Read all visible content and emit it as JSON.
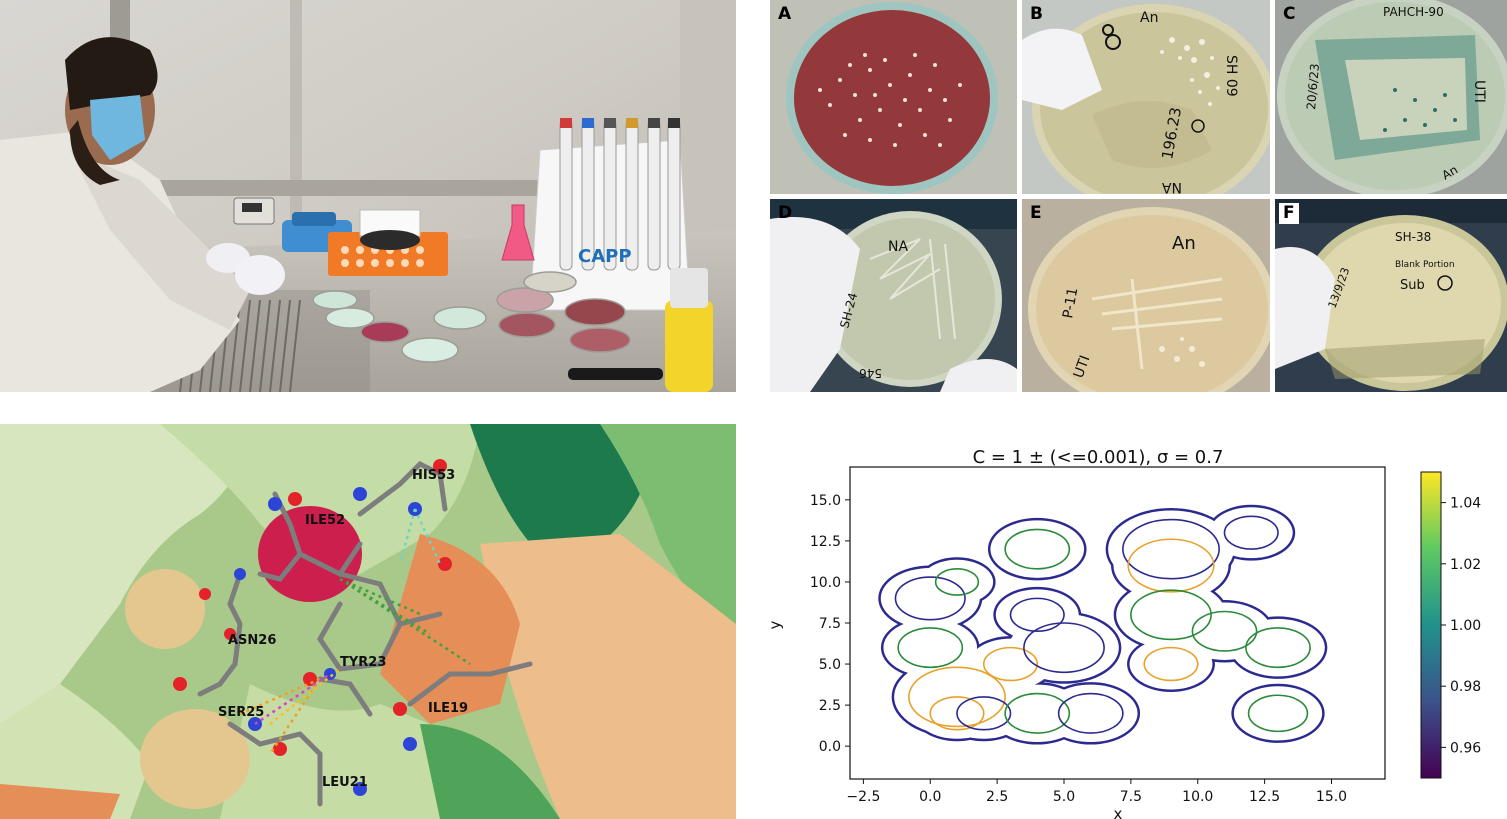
{
  "dishes": [
    {
      "letter": "A"
    },
    {
      "letter": "B"
    },
    {
      "letter": "C"
    },
    {
      "letter": "D"
    },
    {
      "letter": "E"
    },
    {
      "letter": "F"
    }
  ],
  "dish_writing": {
    "b1": "An",
    "b2": "196.23",
    "b3": "NA",
    "b4": "SH 09",
    "c1": "PAHCH-90",
    "c2": "20/6/23",
    "c3": "UTI",
    "c4": "An",
    "d1": "NA",
    "d2": "SH-24",
    "d3": "546",
    "e1": "An",
    "e2": "P-11",
    "e3": "UTI",
    "f1": "SH-38",
    "f2": "Blank Portion",
    "f3": "Sub",
    "f4": "13/9/23"
  },
  "lab_brand": "CAPP",
  "residues": {
    "his53": "HIS53",
    "ile52": "ILE52",
    "asn26": "ASN26",
    "tyr23": "TYR23",
    "ser25": "SER25",
    "ile19": "ILE19",
    "leu21": "LEU21"
  },
  "chart_data": {
    "type": "contour",
    "title": "C = 1 ± (<=0.001),  σ = 0.7",
    "xlabel": "x",
    "ylabel": "y",
    "xlim": [
      -3,
      17
    ],
    "ylim": [
      -2,
      17
    ],
    "x_ticks": [
      "−2.5",
      "0.0",
      "2.5",
      "5.0",
      "7.5",
      "10.0",
      "12.5",
      "15.0"
    ],
    "y_ticks": [
      "0.0",
      "2.5",
      "5.0",
      "7.5",
      "10.0",
      "12.5",
      "15.0"
    ],
    "colorbar_ticks": [
      "0.96",
      "0.98",
      "1.00",
      "1.02",
      "1.04"
    ],
    "colorbar_range": [
      0.95,
      1.05
    ],
    "circles": [
      {
        "x": 0.0,
        "y": 9.0,
        "r": 1.3,
        "color": "#2c2a8f"
      },
      {
        "x": 1.0,
        "y": 10.0,
        "r": 0.8,
        "color": "#2b8a3a"
      },
      {
        "x": 0.0,
        "y": 6.0,
        "r": 1.2,
        "color": "#2b8a3a"
      },
      {
        "x": 1.0,
        "y": 3.0,
        "r": 1.8,
        "color": "#e8a22b"
      },
      {
        "x": 1.0,
        "y": 2.0,
        "r": 1.0,
        "color": "#e8a22b"
      },
      {
        "x": 2.0,
        "y": 2.0,
        "r": 1.0,
        "color": "#2c2a8f"
      },
      {
        "x": 3.0,
        "y": 5.0,
        "r": 1.0,
        "color": "#e8a22b"
      },
      {
        "x": 4.0,
        "y": 8.0,
        "r": 1.0,
        "color": "#2c2a8f"
      },
      {
        "x": 5.0,
        "y": 6.0,
        "r": 1.5,
        "color": "#2c2a8f"
      },
      {
        "x": 4.0,
        "y": 12.0,
        "r": 1.2,
        "color": "#2b8a3a"
      },
      {
        "x": 4.0,
        "y": 2.0,
        "r": 1.2,
        "color": "#2b8a3a"
      },
      {
        "x": 6.0,
        "y": 2.0,
        "r": 1.2,
        "color": "#2c2a8f"
      },
      {
        "x": 9.0,
        "y": 12.0,
        "r": 1.8,
        "color": "#2c2a8f"
      },
      {
        "x": 9.0,
        "y": 11.0,
        "r": 1.6,
        "color": "#e8a22b"
      },
      {
        "x": 9.0,
        "y": 8.0,
        "r": 1.5,
        "color": "#2b8a3a"
      },
      {
        "x": 9.0,
        "y": 5.0,
        "r": 1.0,
        "color": "#e8a22b"
      },
      {
        "x": 11.0,
        "y": 7.0,
        "r": 1.2,
        "color": "#2b8a3a"
      },
      {
        "x": 12.0,
        "y": 13.0,
        "r": 1.0,
        "color": "#2c2a8f"
      },
      {
        "x": 13.0,
        "y": 6.0,
        "r": 1.2,
        "color": "#2b8a3a"
      },
      {
        "x": 13.0,
        "y": 2.0,
        "r": 1.1,
        "color": "#2b8a3a"
      }
    ],
    "boundary_color": "#2c2a8f"
  }
}
